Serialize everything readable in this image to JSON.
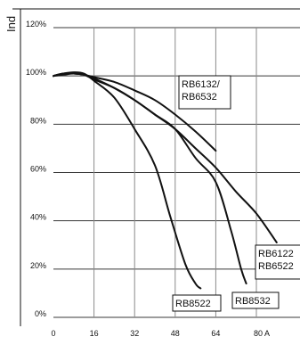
{
  "chart_data": {
    "type": "line",
    "ylabel": "Ind",
    "xlim": [
      0,
      80
    ],
    "ylim": [
      0,
      120
    ],
    "x_ticks": [
      "0",
      "16",
      "32",
      "48",
      "64",
      "80 A"
    ],
    "y_ticks": [
      "0%",
      "20%",
      "40%",
      "60%",
      "80%",
      "100%",
      "120%"
    ],
    "grid": true,
    "series": [
      {
        "name": "RB8522",
        "x": [
          0,
          4,
          8,
          12,
          16,
          24,
          32,
          40,
          46,
          52,
          56,
          58
        ],
        "y": [
          100,
          101,
          101.5,
          101,
          98,
          91,
          78,
          63,
          42,
          22,
          14,
          12
        ]
      },
      {
        "name": "RB8532",
        "x": [
          0,
          4,
          8,
          12,
          16,
          24,
          32,
          40,
          48,
          56,
          64,
          70,
          74,
          76
        ],
        "y": [
          100,
          101,
          101,
          100.5,
          98.5,
          95,
          90,
          84,
          78,
          66,
          56,
          36,
          20,
          14
        ]
      },
      {
        "name": "RB6122/RB6522",
        "x": [
          0,
          4,
          8,
          12,
          16,
          24,
          32,
          40,
          48,
          56,
          64,
          72,
          80,
          88
        ],
        "y": [
          100,
          101,
          101,
          100.5,
          99,
          95,
          90,
          84,
          78,
          70,
          62,
          52,
          43,
          31
        ]
      },
      {
        "name": "RB6132/RB6532",
        "x": [
          0,
          4,
          8,
          12,
          16,
          24,
          32,
          40,
          48,
          56,
          64
        ],
        "y": [
          100,
          100.5,
          101,
          100.5,
          99.5,
          97.5,
          94,
          90,
          84,
          77,
          69
        ]
      }
    ],
    "annotations": [
      {
        "text": "RB6132/\nRB6532",
        "series": "RB6132/RB6532"
      },
      {
        "text": "RB6122\nRB6522",
        "series": "RB6122/RB6522"
      },
      {
        "text": "RB8532",
        "series": "RB8532"
      },
      {
        "text": "RB8522",
        "series": "RB8522"
      }
    ]
  }
}
